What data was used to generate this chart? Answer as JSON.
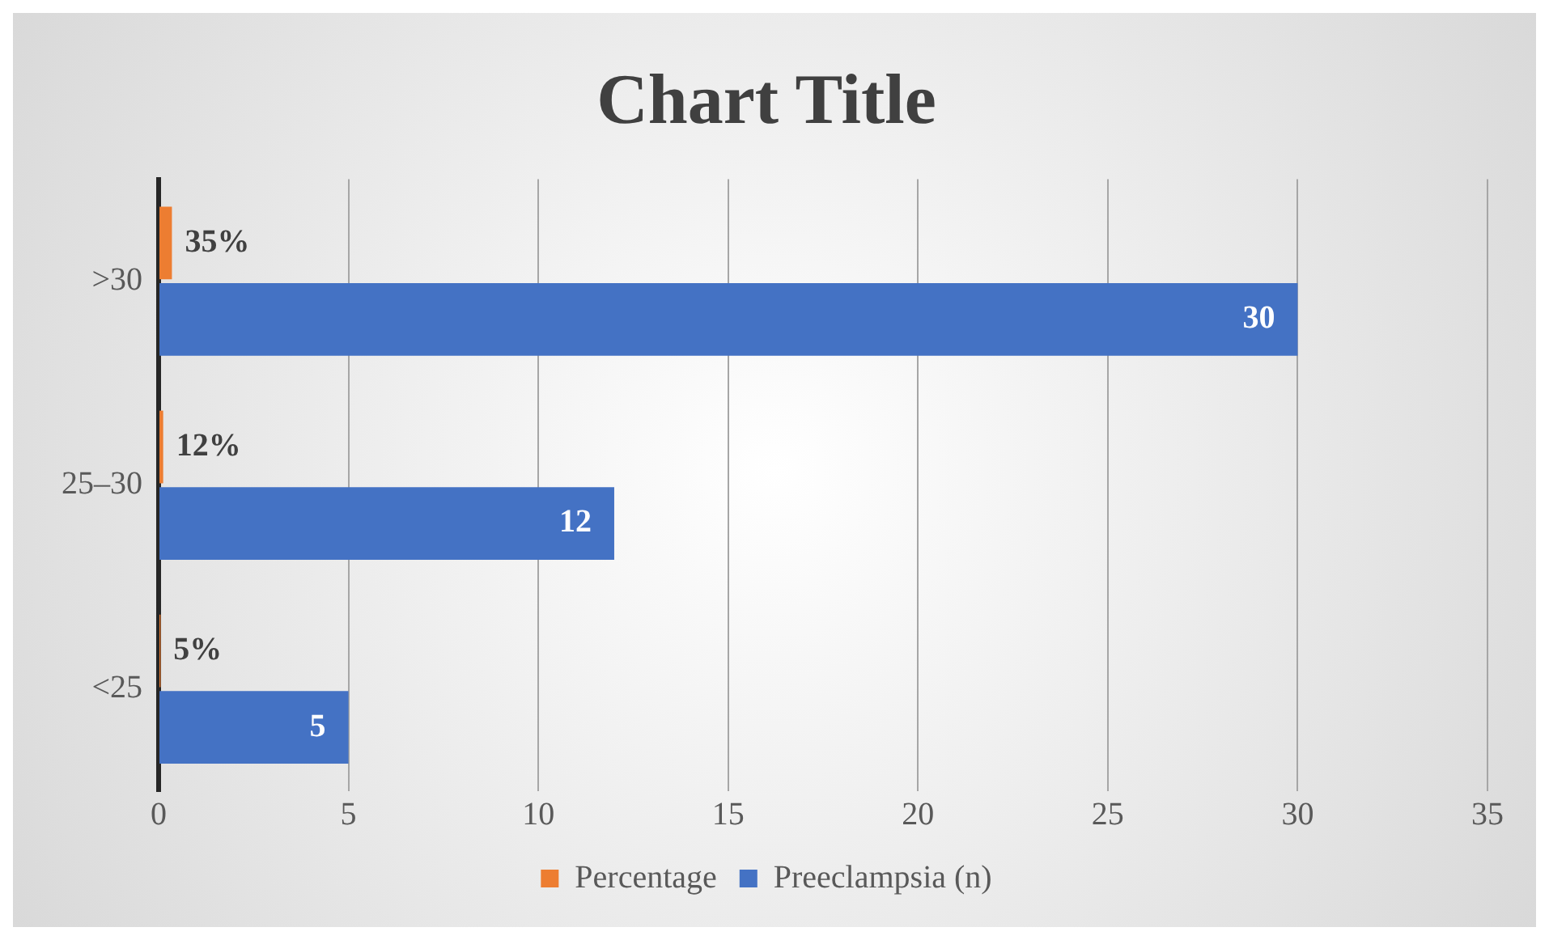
{
  "chart_data": {
    "type": "bar",
    "orientation": "horizontal",
    "title": "Chart Title",
    "categories": [
      ">30",
      "25–30",
      "<25"
    ],
    "series": [
      {
        "name": "Percentage",
        "color": "#ed7d31",
        "values": [
          0.35,
          0.12,
          0.05
        ],
        "value_labels": [
          "35%",
          "12%",
          "5%"
        ]
      },
      {
        "name": "Preeclampsia (n)",
        "color": "#4472c4",
        "values": [
          30,
          12,
          5
        ],
        "value_labels": [
          "30",
          "12",
          "5"
        ]
      }
    ],
    "xlim": [
      0,
      35
    ],
    "xticks": [
      0,
      5,
      10,
      15,
      20,
      25,
      30,
      35
    ],
    "grid": "x",
    "legend": "bottom"
  }
}
